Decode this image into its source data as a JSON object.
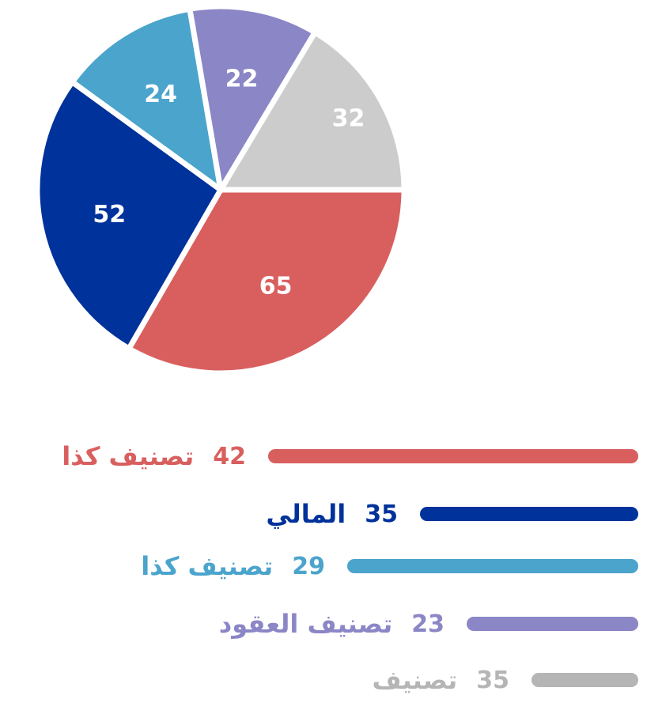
{
  "chart_data": [
    {
      "type": "pie",
      "slices": [
        {
          "value": 65,
          "label": "65",
          "color": "#d95f5f"
        },
        {
          "value": 52,
          "label": "52",
          "color": "#00329b"
        },
        {
          "value": 24,
          "label": "24",
          "color": "#4ba4cc"
        },
        {
          "value": 22,
          "label": "22",
          "color": "#8b86c6"
        },
        {
          "value": 32,
          "label": "32",
          "color": "#cccccc"
        }
      ]
    },
    {
      "type": "bar",
      "orientation": "horizontal",
      "rows": [
        {
          "label": "تصنيف كذا",
          "value": 42,
          "value_text": "42",
          "color": "#d95f5f"
        },
        {
          "label": "المالي",
          "value": 35,
          "value_text": "35",
          "color": "#00329b"
        },
        {
          "label": "تصنيف كذا",
          "value": 29,
          "value_text": "29",
          "color": "#4ba4cc"
        },
        {
          "label": "تصنيف العقود",
          "value": 23,
          "value_text": "23",
          "color": "#8b86c6"
        },
        {
          "label": "تصنيف",
          "value": 35,
          "value_text": "35",
          "color": "#b5b5b5"
        }
      ]
    }
  ]
}
